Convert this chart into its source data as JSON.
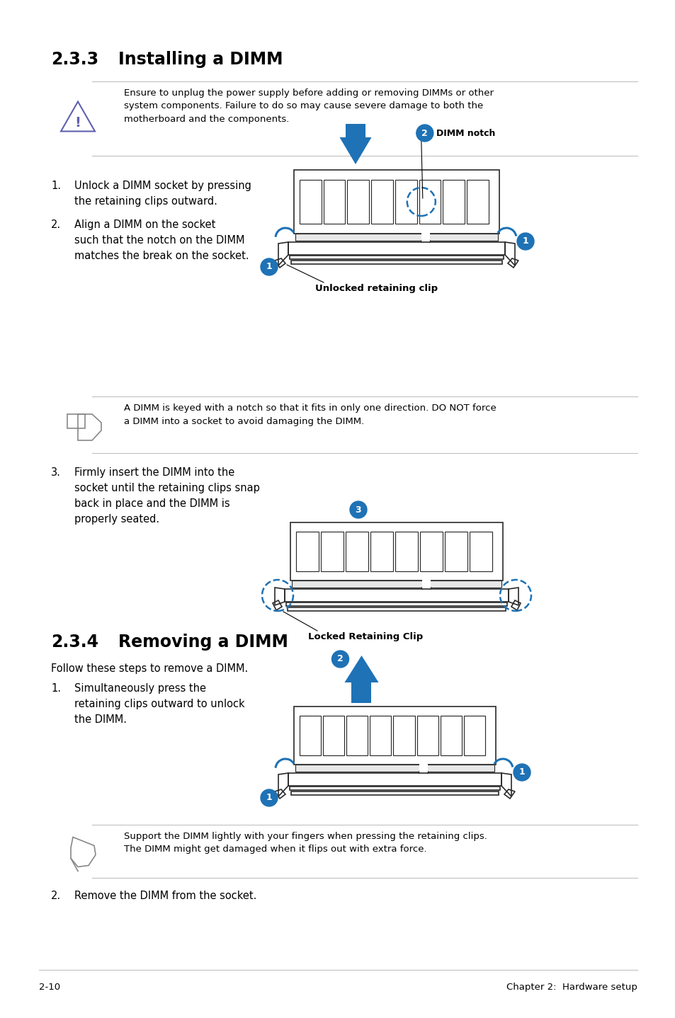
{
  "bg_color": "#ffffff",
  "title_233_num": "2.3.3",
  "title_233_text": "Installing a DIMM",
  "title_234_num": "2.3.4",
  "title_234_text": "Removing a DIMM",
  "warning_text": "Ensure to unplug the power supply before adding or removing DIMMs or other\nsystem components. Failure to do so may cause severe damage to both the\nmotherboard and the components.",
  "note_text1": "A DIMM is keyed with a notch so that it fits in only one direction. DO NOT force\na DIMM into a socket to avoid damaging the DIMM.",
  "note_text2": "Support the DIMM lightly with your fingers when pressing the retaining clips.\nThe DIMM might get damaged when it flips out with extra force.",
  "step1_install_a": "Unlock a DIMM socket by pressing",
  "step1_install_b": "the retaining clips outward.",
  "step2_install_a": "Align a DIMM on the socket",
  "step2_install_b": "such that the notch on the DIMM",
  "step2_install_c": "matches the break on the socket.",
  "step3_install_a": "Firmly insert the DIMM into the",
  "step3_install_b": "socket until the retaining clips snap",
  "step3_install_c": "back in place and the DIMM is",
  "step3_install_d": "properly seated.",
  "remove_intro": "Follow these steps to remove a DIMM.",
  "step1_remove_a": "Simultaneously press the",
  "step1_remove_b": "retaining clips outward to unlock",
  "step1_remove_c": "the DIMM.",
  "step2_remove": "Remove the DIMM from the socket.",
  "caption1": "Unlocked retaining clip",
  "caption2": "Locked Retaining Clip",
  "label_dimm_notch": "DIMM notch",
  "footer_left": "2-10",
  "footer_right": "Chapter 2:  Hardware setup",
  "accent_color": "#1e72b5",
  "text_color": "#000000",
  "gray_line": "#c0c0c0",
  "draw_color": "#2a2a2a",
  "warn_color": "#6060b0"
}
